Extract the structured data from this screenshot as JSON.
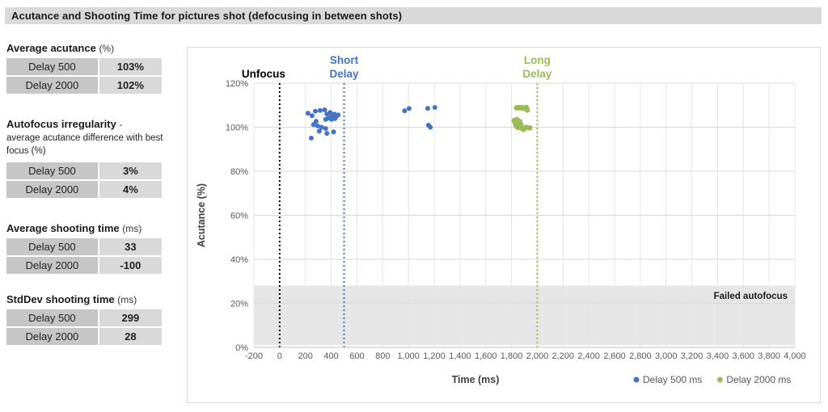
{
  "title": "Acutance and Shooting Time for pictures shot (defocusing in between shots)",
  "stats": [
    {
      "heading": "Average acutance",
      "unit": "(%)",
      "rows": [
        [
          "Delay 500",
          "103%"
        ],
        [
          "Delay 2000",
          "102%"
        ]
      ]
    },
    {
      "heading": "Autofocus irregularity",
      "unit": "-",
      "subtitle": "average acutance difference with best focus (%)",
      "rows": [
        [
          "Delay 500",
          "3%"
        ],
        [
          "Delay 2000",
          "4%"
        ]
      ]
    },
    {
      "heading": "Average shooting time",
      "unit": "(ms)",
      "rows": [
        [
          "Delay 500",
          "33"
        ],
        [
          "Delay 2000",
          "-100"
        ]
      ]
    },
    {
      "heading": "StdDev shooting time",
      "unit": "(ms)",
      "rows": [
        [
          "Delay 500",
          "299"
        ],
        [
          "Delay 2000",
          "28"
        ]
      ]
    }
  ],
  "chart_data": {
    "type": "scatter",
    "title": "",
    "xlabel": "Time (ms)",
    "ylabel": "Acutance (%)",
    "xlim": [
      -200,
      4000
    ],
    "xtick_step": 200,
    "ylim": [
      0,
      120
    ],
    "ytick_step": 20,
    "ytick_suffix": "%",
    "grid": true,
    "legend_position": "bottom-right",
    "vlines": [
      {
        "x": 0,
        "label": "Unfocus",
        "color": "#000000"
      },
      {
        "x": 500,
        "label": "Short Delay",
        "color": "#4472C4"
      },
      {
        "x": 2000,
        "label": "Long Delay",
        "color": "#9BBB59"
      }
    ],
    "band": {
      "y0": 0,
      "y1": 28,
      "label": "Failed autofocus",
      "color": "#E0E0E0"
    },
    "series": [
      {
        "name": "Delay 500 ms",
        "color": "#4472C4",
        "points": [
          [
            220,
            106.4
          ],
          [
            252,
            105.2
          ],
          [
            277,
            107.3
          ],
          [
            315,
            107.6
          ],
          [
            350,
            107.9
          ],
          [
            367,
            106.0
          ],
          [
            392,
            106.7
          ],
          [
            404,
            105.2
          ],
          [
            425,
            106.0
          ],
          [
            440,
            104.8
          ],
          [
            455,
            105.6
          ],
          [
            429,
            103.9
          ],
          [
            402,
            103.6
          ],
          [
            382,
            104.2
          ],
          [
            357,
            103.6
          ],
          [
            283,
            102.7
          ],
          [
            262,
            101.2
          ],
          [
            294,
            100.6
          ],
          [
            325,
            100.0
          ],
          [
            357,
            99.4
          ],
          [
            308,
            98.2
          ],
          [
            367,
            97.2
          ],
          [
            419,
            97.9
          ],
          [
            245,
            95.1
          ],
          [
            970,
            107.5
          ],
          [
            1005,
            108.5
          ],
          [
            1150,
            108.6
          ],
          [
            1205,
            109.0
          ],
          [
            1155,
            100.9
          ],
          [
            1170,
            100.0
          ]
        ]
      },
      {
        "name": "Delay 2000 ms",
        "color": "#9BBB59",
        "points": [
          [
            1840,
            108.8
          ],
          [
            1852,
            108.9
          ],
          [
            1864,
            108.8
          ],
          [
            1876,
            108.9
          ],
          [
            1888,
            108.7
          ],
          [
            1915,
            108.9
          ],
          [
            1922,
            107.8
          ],
          [
            1821,
            103.0
          ],
          [
            1842,
            103.4
          ],
          [
            1863,
            102.6
          ],
          [
            1831,
            101.8
          ],
          [
            1852,
            101.4
          ],
          [
            1873,
            101.2
          ],
          [
            1835,
            100.8
          ],
          [
            1850,
            100.0
          ],
          [
            1842,
            100.3
          ],
          [
            1863,
            99.9
          ],
          [
            1884,
            99.5
          ],
          [
            1915,
            99.9
          ],
          [
            1942,
            99.7
          ],
          [
            1894,
            99.0
          ]
        ]
      }
    ]
  }
}
